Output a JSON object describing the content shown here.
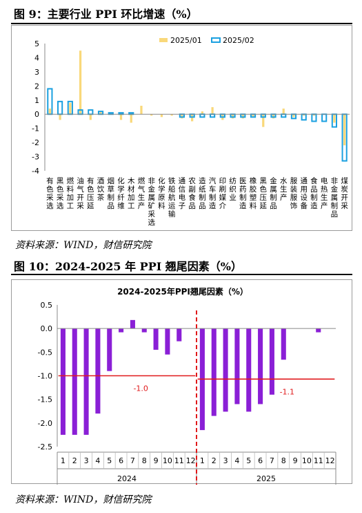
{
  "figure9": {
    "title": "图 9：主要行业 PPI 环比增速（%）",
    "source": "资料来源：WIND，财信研究院",
    "chart_data": {
      "type": "bar",
      "title": "",
      "xlabel": "",
      "ylabel": "",
      "ylim": [
        -4,
        5
      ],
      "yticks": [
        5,
        4,
        3,
        2,
        1,
        0,
        -1,
        -2,
        -3,
        -4
      ],
      "legend_position": "top-right",
      "categories": [
        "有色采选",
        "黑色采选",
        "燃料加工",
        "油气开采",
        "有色压延",
        "酒饮茶",
        "烟草制品",
        "化学纤维",
        "木材加工",
        "燃气生产",
        "非金属矿采选",
        "化学原料",
        "铁船航运输",
        "通信电子",
        "农副食品",
        "造纸制品",
        "汽车制造",
        "印刷媒介",
        "纺织业",
        "医药制造",
        "橡胶塑料",
        "黑色压延",
        "金属制品",
        "水生产",
        "服装服饰",
        "通用设备",
        "食品制造",
        "电热生产",
        "非金属制品",
        "煤炭开采"
      ],
      "series": [
        {
          "name": "2025/01",
          "color": "#F9D87A",
          "style": "fill",
          "values": [
            0.4,
            -0.4,
            0.8,
            4.5,
            -0.4,
            0.2,
            0.0,
            -0.4,
            -0.6,
            0.6,
            -0.1,
            -0.2,
            -0.1,
            -0.3,
            -0.5,
            0.2,
            0.5,
            -0.4,
            -0.3,
            -0.3,
            -0.2,
            -0.9,
            -0.3,
            0.4,
            -0.2,
            -0.1,
            -0.1,
            0.0,
            -0.6,
            -2.2
          ]
        },
        {
          "name": "2025/02",
          "color": "#1AA0E0",
          "style": "outline",
          "values": [
            1.8,
            0.9,
            0.9,
            0.3,
            0.3,
            0.2,
            0.1,
            0.1,
            0.1,
            0.0,
            0.0,
            0.0,
            0.0,
            -0.2,
            -0.2,
            -0.2,
            -0.2,
            -0.2,
            -0.2,
            -0.2,
            -0.2,
            -0.2,
            -0.2,
            -0.2,
            -0.3,
            -0.4,
            -0.5,
            -0.5,
            -0.9,
            -3.3
          ]
        }
      ]
    }
  },
  "figure10": {
    "title": "图 10：2024-2025 年 PPI 翘尾因素（%）",
    "source": "资料来源：WIND，财信研究院",
    "chart_data": {
      "type": "bar",
      "title": "2024-2025年PPI翘尾因素（%）",
      "xlabel": "",
      "ylabel": "",
      "ylim": [
        -2.5,
        0.5
      ],
      "yticks": [
        "0.5",
        "0.0",
        "-0.5",
        "-1.0",
        "-1.5",
        "-2.0",
        "-2.5"
      ],
      "bar_color": "#8A1FD6",
      "mean_color": "#E0191B",
      "divider_color": "#E0191B",
      "groups": [
        {
          "label": "2024",
          "months": [
            "1",
            "2",
            "3",
            "4",
            "5",
            "6",
            "7",
            "8",
            "9",
            "10",
            "11",
            "12"
          ],
          "values": [
            -2.25,
            -2.25,
            -2.25,
            -1.8,
            -0.9,
            -0.08,
            0.18,
            -0.08,
            -0.45,
            -0.55,
            -0.27,
            0.0
          ],
          "mean": -1.0,
          "mean_label": "-1.0"
        },
        {
          "label": "2025",
          "months": [
            "1",
            "2",
            "3",
            "4",
            "5",
            "6",
            "7",
            "8",
            "9",
            "10",
            "11",
            "12"
          ],
          "values": [
            -2.15,
            -1.85,
            -1.76,
            -1.6,
            -1.76,
            -1.6,
            -1.4,
            -0.66,
            0.0,
            0.0,
            -0.08,
            0.0
          ],
          "mean": -1.07,
          "mean_label": "-1.1"
        }
      ]
    }
  }
}
